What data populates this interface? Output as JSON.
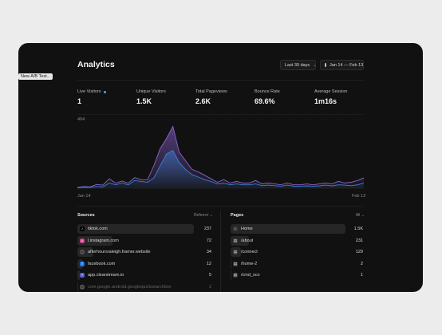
{
  "tooltip": "New A/B Test...",
  "header": {
    "title": "Analytics",
    "range_label": "Last 30 days",
    "date_range": "Jan 14 — Feb 13"
  },
  "metrics": [
    {
      "label": "Live Visitors",
      "value": "1"
    },
    {
      "label": "Unique Visitors",
      "value": "1.5K"
    },
    {
      "label": "Total Pageviews",
      "value": "2.6K"
    },
    {
      "label": "Bounce Rate",
      "value": "69.6%"
    },
    {
      "label": "Average Session",
      "value": "1m16s"
    }
  ],
  "chart_data": {
    "type": "area",
    "ymax_label": "404",
    "ylim": [
      0,
      404
    ],
    "x_start": "Jan 14",
    "x_end": "Feb 13",
    "series": [
      {
        "color": "#8a63d2",
        "values": [
          5,
          10,
          8,
          22,
          18,
          55,
          30,
          42,
          30,
          62,
          50,
          48,
          130,
          230,
          290,
          360,
          210,
          160,
          110,
          95,
          75,
          55,
          35,
          50,
          30,
          40,
          30,
          30,
          45,
          25,
          30,
          25,
          20,
          30,
          20,
          20,
          25,
          20,
          25,
          30,
          25,
          40,
          30,
          35,
          45,
          60
        ]
      },
      {
        "color": "#3d7fd6",
        "values": [
          3,
          5,
          5,
          10,
          8,
          30,
          20,
          30,
          20,
          45,
          40,
          35,
          60,
          130,
          200,
          220,
          150,
          110,
          80,
          65,
          50,
          40,
          25,
          30,
          20,
          25,
          20,
          20,
          25,
          15,
          18,
          15,
          12,
          18,
          12,
          12,
          14,
          12,
          14,
          18,
          14,
          20,
          18,
          15,
          20,
          30
        ]
      }
    ]
  },
  "sources": {
    "title": "Sources",
    "control": "Referrer",
    "rows": [
      {
        "name": "tiktok.com",
        "value": "237",
        "icon": "tiktok-icon",
        "share": 1.0
      },
      {
        "name": "l.instagram.com",
        "value": "72",
        "icon": "instagram-icon",
        "share": 0.3
      },
      {
        "name": "afterhoursraleigh.framer.website",
        "value": "34",
        "icon": "globe-icon",
        "share": 0.14
      },
      {
        "name": "facebook.com",
        "value": "12",
        "icon": "facebook-icon",
        "share": 0.05
      },
      {
        "name": "app.clearstream.io",
        "value": "5",
        "icon": "clearstream-icon",
        "share": 0.02
      },
      {
        "name": "com.google.android.googlequicksearchbox",
        "value": "2",
        "icon": "globe-icon",
        "share": 0.01
      }
    ]
  },
  "pages": {
    "title": "Pages",
    "control": "All",
    "rows": [
      {
        "name": "Home",
        "value": "1.5K",
        "icon": "home-icon",
        "share": 1.0
      },
      {
        "name": "/about",
        "value": "231",
        "icon": "file-icon",
        "share": 0.16
      },
      {
        "name": "/connect",
        "value": "129",
        "icon": "file-icon",
        "share": 0.09
      },
      {
        "name": "/home-2",
        "value": "2",
        "icon": "file-icon",
        "share": 0.01
      },
      {
        "name": "/cmd_sco",
        "value": "1",
        "icon": "file-icon",
        "share": 0.01
      }
    ]
  }
}
